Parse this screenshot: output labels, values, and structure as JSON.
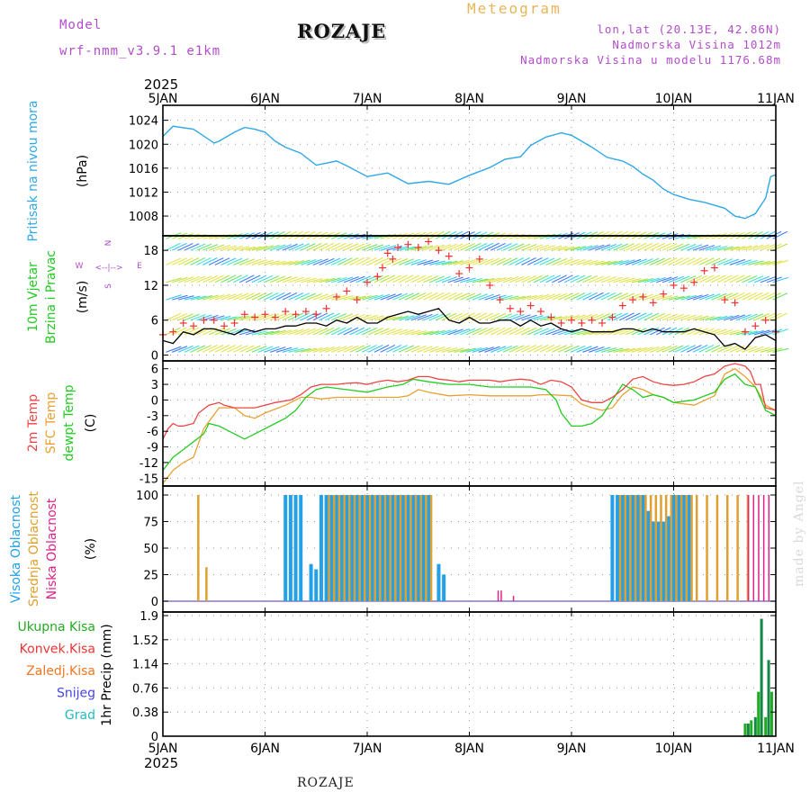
{
  "header": {
    "model_label": "Model",
    "model_name": "wrf-nmm_v3.9.1 e1km",
    "title": "ROZAJE",
    "meteogram_label": "Meteogram",
    "lonlat": "lon,lat (20.13E, 42.86N)",
    "altitude": "Nadmorska Visina 1012m",
    "model_altitude": "Nadmorska Visina u modelu 1176.68m"
  },
  "footer": {
    "location": "ROZAJE",
    "watermark": "made by Angel"
  },
  "colors": {
    "pressure": "#2ea8e6",
    "temp_2m": "#ee4444",
    "sfc_temp": "#e8a030",
    "dewpoint": "#22cc22",
    "high_cloud": "#22a0e8",
    "mid_cloud": "#e0a030",
    "low_cloud": "#dd2288",
    "total_precip": "#22aa22",
    "convective": "#ee3333",
    "snow_precip": "#4444ee",
    "hail": "#22bbbb",
    "model_text": "#b34dcc"
  },
  "chart_data": [
    {
      "type": "line",
      "panel": "pressure",
      "ylabel_series": "Pritisak na nivou mora",
      "ylabel_unit": "(hPa)",
      "ylim": [
        1005,
        1025
      ],
      "yticks": [
        1008,
        1012,
        1016,
        1020,
        1024
      ],
      "grid": true,
      "series": [
        {
          "name": "Pritisak na nivou mora",
          "x": [
            5.0,
            5.1,
            5.3,
            5.5,
            5.55,
            5.7,
            5.8,
            5.9,
            6.0,
            6.1,
            6.2,
            6.35,
            6.5,
            6.7,
            6.8,
            7.0,
            7.2,
            7.4,
            7.6,
            7.8,
            8.0,
            8.2,
            8.35,
            8.5,
            8.6,
            8.75,
            8.9,
            9.0,
            9.2,
            9.35,
            9.5,
            9.6,
            9.7,
            9.8,
            9.9,
            10.0,
            10.15,
            10.3,
            10.4,
            10.5,
            10.6,
            10.7,
            10.8,
            10.9,
            10.95,
            11.0
          ],
          "y": [
            1021.3,
            1023.0,
            1022.5,
            1020.2,
            1020.5,
            1022.0,
            1022.8,
            1022.5,
            1022.0,
            1020.5,
            1019.5,
            1018.5,
            1016.5,
            1017.2,
            1016.4,
            1014.6,
            1015.2,
            1013.4,
            1013.8,
            1013.3,
            1014.8,
            1016.1,
            1017.5,
            1017.9,
            1019.8,
            1021.2,
            1021.9,
            1021.5,
            1019.5,
            1017.8,
            1017.2,
            1016.3,
            1015.0,
            1014.0,
            1012.5,
            1011.6,
            1010.8,
            1010.3,
            1009.8,
            1009.3,
            1008.0,
            1007.6,
            1008.4,
            1011.0,
            1014.6,
            1014.9
          ]
        }
      ]
    },
    {
      "type": "line",
      "panel": "wind",
      "ylabel_series": [
        "10m Vjetar",
        "Brzina i Pravac"
      ],
      "ylabel_unit": "(m/s)",
      "direction_legend": [
        "N",
        "W",
        "E",
        "S",
        "<--|-->"
      ],
      "ylim": [
        -1,
        20.5
      ],
      "yticks": [
        0,
        6,
        12,
        18
      ],
      "grid": true,
      "series": [
        {
          "name": "10m wind speed",
          "x": [
            5.0,
            5.1,
            5.2,
            5.3,
            5.4,
            5.5,
            5.6,
            5.7,
            5.8,
            5.9,
            6.0,
            6.1,
            6.2,
            6.3,
            6.4,
            6.5,
            6.6,
            6.7,
            6.8,
            6.9,
            7.0,
            7.1,
            7.2,
            7.3,
            7.4,
            7.5,
            7.6,
            7.7,
            7.8,
            7.9,
            8.0,
            8.1,
            8.2,
            8.3,
            8.4,
            8.5,
            8.6,
            8.7,
            8.8,
            8.9,
            9.0,
            9.1,
            9.2,
            9.3,
            9.4,
            9.5,
            9.6,
            9.7,
            9.8,
            9.9,
            10.0,
            10.1,
            10.2,
            10.3,
            10.4,
            10.5,
            10.6,
            10.7,
            10.8,
            10.9,
            11.0
          ],
          "y": [
            2.5,
            2.0,
            4.0,
            3.5,
            4.5,
            4.5,
            4.0,
            3.5,
            4.5,
            4.0,
            4.5,
            4.5,
            5.0,
            5.0,
            5.5,
            5.5,
            5.0,
            6.0,
            5.5,
            6.5,
            5.5,
            5.5,
            6.5,
            7.0,
            7.5,
            7.0,
            7.5,
            8.0,
            6.0,
            5.5,
            6.5,
            5.5,
            5.5,
            6.0,
            6.0,
            5.0,
            6.0,
            5.0,
            5.5,
            4.5,
            4.0,
            4.5,
            4.0,
            4.0,
            4.0,
            4.5,
            4.5,
            4.0,
            4.5,
            4.0,
            4.0,
            4.0,
            4.5,
            4.0,
            3.5,
            1.5,
            2.0,
            1.0,
            3.0,
            3.5,
            2.5
          ]
        },
        {
          "name": "10m wind gust",
          "x": [
            5.0,
            5.1,
            5.2,
            5.3,
            5.4,
            5.5,
            5.6,
            5.7,
            5.8,
            5.9,
            6.0,
            6.1,
            6.2,
            6.3,
            6.4,
            6.5,
            6.6,
            6.7,
            6.8,
            6.9,
            7.0,
            7.1,
            7.15,
            7.2,
            7.25,
            7.3,
            7.4,
            7.5,
            7.6,
            7.7,
            7.8,
            7.9,
            8.0,
            8.1,
            8.2,
            8.3,
            8.4,
            8.5,
            8.6,
            8.7,
            8.8,
            8.9,
            9.0,
            9.1,
            9.2,
            9.3,
            9.4,
            9.5,
            9.6,
            9.7,
            9.8,
            9.9,
            10.0,
            10.1,
            10.2,
            10.3,
            10.4,
            10.5,
            10.6,
            10.7,
            10.8,
            10.9,
            11.0
          ],
          "y": [
            3.5,
            4.0,
            5.5,
            5.0,
            6.0,
            6.0,
            5.0,
            5.5,
            7.0,
            6.5,
            7.0,
            6.5,
            7.5,
            7.0,
            7.5,
            7.0,
            8.0,
            10.0,
            11.0,
            9.5,
            12.5,
            13.5,
            15.0,
            17.5,
            16.5,
            18.5,
            19.0,
            18.5,
            19.5,
            18.0,
            17.0,
            14.0,
            15.0,
            16.5,
            12.0,
            9.5,
            8.0,
            7.5,
            8.5,
            7.5,
            6.5,
            5.5,
            6.0,
            5.5,
            6.0,
            5.5,
            6.5,
            8.5,
            9.5,
            10.0,
            9.0,
            10.5,
            12.0,
            11.5,
            12.5,
            14.5,
            15.0,
            9.5,
            9.0,
            4.0,
            5.0,
            6.0,
            4.0
          ]
        }
      ]
    },
    {
      "type": "line",
      "panel": "temperature",
      "ylabel_series": [
        "2m Temp",
        "SFC Temp",
        "dewpt Temp"
      ],
      "ylabel_unit": "(C)",
      "ylim": [
        -16.5,
        7.5
      ],
      "yticks": [
        -15,
        -12,
        -9,
        -6,
        -3,
        0,
        3,
        6
      ],
      "grid": true,
      "series": [
        {
          "name": "2m Temp",
          "x": [
            5.0,
            5.05,
            5.1,
            5.15,
            5.2,
            5.3,
            5.35,
            5.45,
            5.55,
            5.6,
            5.7,
            5.8,
            5.9,
            6.0,
            6.1,
            6.25,
            6.35,
            6.45,
            6.55,
            6.7,
            6.8,
            6.9,
            7.0,
            7.1,
            7.2,
            7.3,
            7.4,
            7.5,
            7.6,
            7.7,
            7.8,
            7.9,
            8.0,
            8.2,
            8.3,
            8.4,
            8.5,
            8.6,
            8.7,
            8.8,
            8.9,
            9.0,
            9.1,
            9.2,
            9.3,
            9.4,
            9.5,
            9.6,
            9.7,
            9.8,
            9.9,
            10.0,
            10.1,
            10.2,
            10.3,
            10.4,
            10.5,
            10.6,
            10.7,
            10.75,
            10.8,
            10.85,
            10.9,
            11.0
          ],
          "y": [
            -7.5,
            -5.5,
            -4.5,
            -5.0,
            -5.0,
            -4.5,
            -2.5,
            -1.0,
            -0.5,
            -1.0,
            -1.5,
            -1.5,
            -1.5,
            -1.0,
            -0.5,
            0.0,
            1.0,
            2.5,
            3.0,
            3.0,
            3.2,
            3.3,
            3.0,
            3.5,
            3.8,
            3.5,
            3.8,
            4.5,
            4.5,
            4.0,
            3.8,
            3.5,
            3.8,
            3.8,
            3.5,
            3.8,
            4.0,
            3.8,
            3.0,
            3.8,
            3.5,
            2.5,
            0.0,
            -0.5,
            -0.5,
            0.5,
            2.0,
            4.0,
            4.5,
            3.5,
            3.0,
            2.8,
            3.0,
            3.5,
            4.5,
            5.0,
            6.5,
            7.0,
            6.5,
            5.5,
            3.0,
            3.0,
            -1.5,
            -2.0
          ]
        },
        {
          "name": "SFC Temp",
          "x": [
            5.0,
            5.1,
            5.2,
            5.3,
            5.4,
            5.55,
            5.7,
            5.8,
            5.9,
            6.0,
            6.2,
            6.35,
            6.45,
            6.55,
            6.7,
            6.9,
            7.1,
            7.3,
            7.4,
            7.5,
            7.6,
            7.8,
            8.0,
            8.2,
            8.4,
            8.6,
            8.7,
            8.8,
            9.0,
            9.1,
            9.2,
            9.3,
            9.4,
            9.5,
            9.6,
            9.7,
            9.8,
            9.9,
            10.0,
            10.2,
            10.4,
            10.5,
            10.6,
            10.7,
            10.8,
            10.9,
            11.0
          ],
          "y": [
            -16.0,
            -13.5,
            -12.0,
            -11.0,
            -5.5,
            -1.5,
            -1.5,
            -3.0,
            -3.5,
            -2.5,
            -1.0,
            0.5,
            0.5,
            0.2,
            0.5,
            0.5,
            0.5,
            0.5,
            0.8,
            2.0,
            1.5,
            0.8,
            1.0,
            0.8,
            0.8,
            0.8,
            1.0,
            1.0,
            0.8,
            -0.8,
            -1.5,
            -2.0,
            -1.5,
            1.0,
            2.5,
            2.0,
            1.0,
            0.5,
            -0.5,
            -1.0,
            0.8,
            5.0,
            6.0,
            4.5,
            2.5,
            -1.0,
            -2.0
          ]
        },
        {
          "name": "dewpt Temp",
          "x": [
            5.0,
            5.1,
            5.2,
            5.3,
            5.4,
            5.45,
            5.55,
            5.7,
            5.8,
            5.9,
            6.0,
            6.1,
            6.2,
            6.3,
            6.4,
            6.5,
            6.6,
            6.8,
            7.0,
            7.1,
            7.2,
            7.35,
            7.45,
            7.6,
            7.8,
            8.0,
            8.2,
            8.4,
            8.6,
            8.75,
            8.85,
            8.9,
            9.0,
            9.1,
            9.2,
            9.3,
            9.4,
            9.5,
            9.6,
            9.7,
            9.8,
            9.9,
            10.0,
            10.2,
            10.4,
            10.5,
            10.6,
            10.7,
            10.8,
            10.9,
            11.0
          ],
          "y": [
            -13.5,
            -11.0,
            -9.5,
            -8.0,
            -6.5,
            -4.5,
            -5.0,
            -6.5,
            -7.5,
            -6.5,
            -5.5,
            -4.5,
            -3.5,
            -2.0,
            0.5,
            2.0,
            2.5,
            2.0,
            1.5,
            2.0,
            2.5,
            3.0,
            4.0,
            3.5,
            3.0,
            3.0,
            2.5,
            2.5,
            2.5,
            2.0,
            0.0,
            -2.5,
            -5.0,
            -5.0,
            -4.5,
            -3.0,
            0.0,
            3.0,
            2.0,
            0.5,
            1.0,
            0.5,
            -0.5,
            0.0,
            1.5,
            4.0,
            5.0,
            3.0,
            2.5,
            -2.0,
            -3.0
          ]
        }
      ]
    },
    {
      "type": "bar",
      "panel": "cloud_cover",
      "ylabel_series": [
        "Visoka Oblacnost",
        "Srednja Oblacnost",
        "Niska Oblacnost"
      ],
      "ylabel_unit": "(%)",
      "ylim": [
        0,
        100
      ],
      "yticks": [
        0,
        25,
        50,
        75,
        100
      ],
      "grid": true,
      "series": [
        {
          "name": "Visoka Oblacnost",
          "x": [
            6.2,
            6.25,
            6.3,
            6.35,
            6.45,
            6.5,
            6.55,
            6.6,
            6.65,
            6.7,
            6.75,
            6.8,
            6.85,
            6.9,
            6.95,
            7.0,
            7.05,
            7.1,
            7.15,
            7.2,
            7.25,
            7.3,
            7.35,
            7.4,
            7.45,
            7.5,
            7.55,
            7.6,
            7.7,
            7.75,
            9.4,
            9.45,
            9.5,
            9.55,
            9.6,
            9.65,
            9.7,
            9.75,
            9.8,
            9.85,
            9.9,
            9.95,
            10.0,
            10.05,
            10.1,
            10.15
          ],
          "values": [
            100,
            100,
            100,
            100,
            35,
            30,
            100,
            100,
            100,
            100,
            100,
            100,
            100,
            100,
            100,
            100,
            100,
            100,
            100,
            100,
            100,
            100,
            100,
            100,
            100,
            100,
            100,
            100,
            35,
            25,
            100,
            100,
            100,
            100,
            100,
            100,
            100,
            85,
            75,
            75,
            75,
            80,
            100,
            100,
            100,
            100
          ]
        },
        {
          "name": "Srednja Oblacnost",
          "x": [
            5.32,
            5.4,
            6.6,
            6.65,
            6.7,
            6.75,
            6.8,
            6.85,
            6.9,
            6.95,
            7.0,
            7.05,
            7.1,
            7.15,
            7.2,
            7.25,
            7.3,
            7.35,
            7.4,
            7.45,
            7.5,
            7.55,
            7.6,
            9.45,
            9.5,
            9.55,
            9.6,
            9.65,
            9.7,
            9.75,
            9.8,
            9.85,
            9.9,
            9.95,
            10.0,
            10.05,
            10.1,
            10.15,
            10.2,
            10.3,
            10.4,
            10.5,
            10.6,
            10.7
          ],
          "values": [
            100,
            32,
            100,
            100,
            100,
            100,
            100,
            100,
            100,
            100,
            100,
            100,
            100,
            100,
            100,
            100,
            100,
            100,
            100,
            100,
            100,
            100,
            100,
            100,
            100,
            100,
            100,
            100,
            100,
            100,
            100,
            100,
            100,
            100,
            100,
            100,
            100,
            100,
            100,
            100,
            100,
            100,
            100,
            100
          ]
        },
        {
          "name": "Niska Oblacnost",
          "x": [
            8.3,
            8.33,
            8.45,
            10.75,
            10.8,
            10.85,
            10.9,
            10.95
          ],
          "values": [
            10,
            10,
            5,
            100,
            100,
            100,
            100,
            100
          ]
        }
      ]
    },
    {
      "type": "bar",
      "panel": "precipitation",
      "legend": [
        "Ukupna Kisa",
        "Konvek.Kisa",
        "Zaledj.Kisa",
        "Snijeg",
        "Grad"
      ],
      "ylabel": "1hr Precip (mm)",
      "ylim": [
        0,
        1.9
      ],
      "yticks": [
        0,
        0.38,
        0.76,
        1.14,
        1.52,
        1.9
      ],
      "grid": true,
      "series": [
        {
          "name": "Ukupna Kisa",
          "x": [
            10.7,
            10.73,
            10.76,
            10.8,
            10.83,
            10.86,
            10.9,
            10.93,
            10.96
          ],
          "values": [
            0.2,
            0.2,
            0.25,
            0.3,
            0.7,
            1.85,
            0.3,
            1.2,
            0.7
          ]
        }
      ]
    },
    {
      "type": "table",
      "panel": "time_axis",
      "year": "2025",
      "categories": [
        "5JAN",
        "6JAN",
        "7JAN",
        "8JAN",
        "9JAN",
        "10JAN",
        "11JAN"
      ]
    }
  ]
}
